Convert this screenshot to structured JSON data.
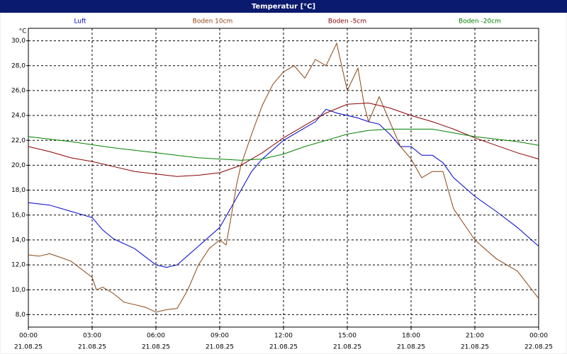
{
  "chart_data": {
    "type": "line",
    "title": "Temperatur [°C]",
    "y_unit": "°C",
    "xlim": [
      0,
      24
    ],
    "ylim": [
      7,
      31
    ],
    "xticks": [
      {
        "value": 0,
        "label": "00:00",
        "date": "21.08.25"
      },
      {
        "value": 3,
        "label": "03:00",
        "date": "21.08.25"
      },
      {
        "value": 6,
        "label": "06:00",
        "date": "21.08.25"
      },
      {
        "value": 9,
        "label": "09:00",
        "date": "21.08.25"
      },
      {
        "value": 12,
        "label": "12:00",
        "date": "21.08.25"
      },
      {
        "value": 15,
        "label": "15:00",
        "date": "21.08.25"
      },
      {
        "value": 18,
        "label": "18:00",
        "date": "21.08.25"
      },
      {
        "value": 21,
        "label": "21:00",
        "date": "21.08.25"
      },
      {
        "value": 24,
        "label": "00:00",
        "date": "22.08.25"
      }
    ],
    "yticks": [
      {
        "value": 8,
        "label": "8,0"
      },
      {
        "value": 10,
        "label": "10,0"
      },
      {
        "value": 12,
        "label": "12,0"
      },
      {
        "value": 14,
        "label": "14,0"
      },
      {
        "value": 16,
        "label": "16,0"
      },
      {
        "value": 18,
        "label": "18,0"
      },
      {
        "value": 20,
        "label": "20,0"
      },
      {
        "value": 22,
        "label": "22,0"
      },
      {
        "value": 24,
        "label": "24,0"
      },
      {
        "value": 26,
        "label": "26,0"
      },
      {
        "value": 28,
        "label": "28,0"
      },
      {
        "value": 30,
        "label": "30,0"
      }
    ],
    "grid": true,
    "series": [
      {
        "name": "Luft",
        "color": "#0000cc",
        "x": [
          0,
          1,
          2,
          3,
          3.5,
          4,
          5,
          6,
          6.5,
          7,
          8,
          9,
          9.5,
          10,
          10.5,
          11,
          12,
          13,
          13.5,
          14,
          14.5,
          15,
          15.5,
          16,
          16.5,
          17,
          17.5,
          18,
          18.5,
          19,
          19.5,
          20,
          21,
          22,
          23,
          24
        ],
        "values": [
          17.0,
          16.8,
          16.3,
          15.8,
          14.8,
          14.1,
          13.3,
          12.0,
          11.8,
          12.0,
          13.5,
          15.0,
          16.5,
          18.0,
          19.5,
          20.5,
          22.0,
          23.0,
          23.5,
          24.5,
          24.2,
          24.0,
          23.8,
          23.5,
          23.3,
          22.5,
          21.5,
          21.5,
          20.8,
          20.8,
          20.2,
          19.0,
          17.5,
          16.3,
          15.0,
          13.5
        ]
      },
      {
        "name": "Boden 10cm",
        "color": "#8b4513",
        "x": [
          0,
          0.5,
          1,
          1.5,
          2,
          3,
          3.2,
          3.5,
          4,
          4.5,
          5,
          5.5,
          6,
          6.5,
          7,
          7.5,
          8,
          8.5,
          9,
          9.3,
          9.5,
          9.8,
          10,
          10.5,
          11,
          11.5,
          12,
          12.5,
          13,
          13.5,
          14,
          14.5,
          14.8,
          15,
          15.5,
          15.8,
          16,
          16.5,
          17,
          17.5,
          18,
          18.5,
          19,
          19.5,
          20,
          21,
          22,
          23,
          24
        ],
        "values": [
          12.8,
          12.7,
          12.9,
          12.6,
          12.3,
          11.0,
          10.0,
          10.2,
          9.7,
          9.0,
          8.8,
          8.6,
          8.2,
          8.4,
          8.5,
          10.0,
          12.0,
          13.3,
          14.0,
          13.6,
          15.5,
          18.5,
          20.0,
          22.5,
          24.8,
          26.5,
          27.5,
          28.0,
          27.0,
          28.5,
          28.0,
          29.8,
          27.5,
          26.0,
          27.8,
          24.8,
          23.5,
          25.5,
          23.5,
          21.5,
          20.5,
          19.0,
          19.5,
          19.5,
          16.5,
          14.0,
          12.5,
          11.5,
          9.3
        ]
      },
      {
        "name": "Boden -5cm",
        "color": "#8b0000",
        "x": [
          0,
          1,
          2,
          3,
          4,
          5,
          6,
          7,
          8,
          9,
          10,
          11,
          12,
          13,
          14,
          15,
          16,
          17,
          18,
          19,
          20,
          21,
          22,
          23,
          24
        ],
        "values": [
          21.5,
          21.1,
          20.6,
          20.3,
          19.9,
          19.5,
          19.3,
          19.1,
          19.2,
          19.4,
          20.0,
          21.0,
          22.2,
          23.2,
          24.2,
          24.9,
          25.0,
          24.6,
          24.0,
          23.5,
          22.9,
          22.2,
          21.6,
          21.0,
          20.5
        ]
      },
      {
        "name": "Boden -20cm",
        "color": "#008000",
        "x": [
          0,
          2,
          4,
          6,
          8,
          9,
          10,
          11,
          12,
          13,
          14,
          15,
          16,
          17,
          18,
          19,
          20,
          21,
          22,
          23,
          24
        ],
        "values": [
          22.3,
          21.9,
          21.4,
          21.0,
          20.6,
          20.5,
          20.4,
          20.5,
          20.9,
          21.5,
          22.0,
          22.5,
          22.8,
          22.9,
          22.9,
          22.9,
          22.6,
          22.3,
          22.1,
          21.9,
          21.6
        ]
      }
    ]
  }
}
